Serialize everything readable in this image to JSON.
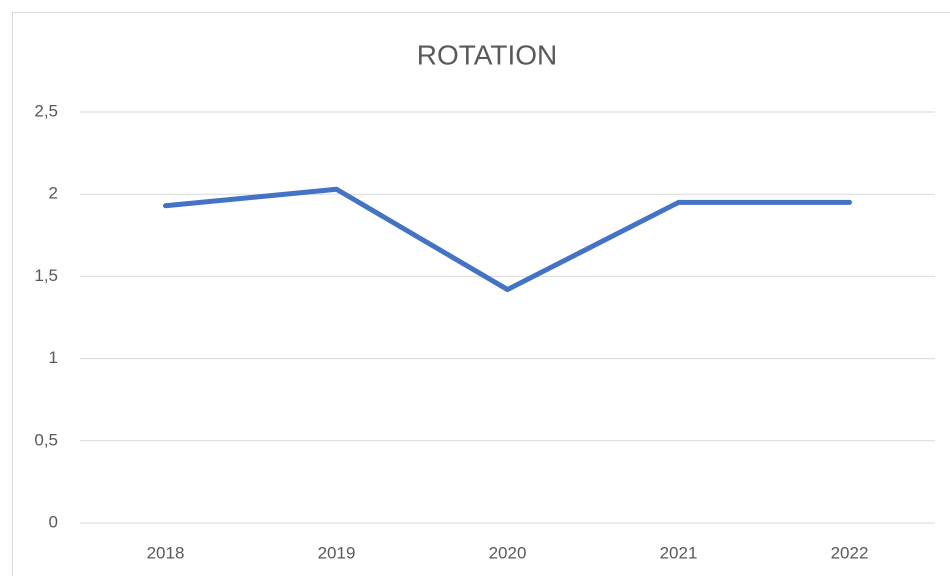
{
  "chart_data": {
    "type": "line",
    "title": "ROTATION",
    "categories": [
      "2018",
      "2019",
      "2020",
      "2021",
      "2022"
    ],
    "series": [
      {
        "name": "ROTATION",
        "color": "#4472c4",
        "values": [
          1.93,
          2.03,
          1.42,
          1.95,
          1.95
        ]
      }
    ],
    "ylim": [
      0,
      2.5
    ],
    "yticks": [
      0,
      {
        "value": 0.5,
        "label": "0,5"
      },
      1,
      {
        "value": 1.5,
        "label": "1,5"
      },
      2,
      {
        "value": 2.5,
        "label": "2,5"
      }
    ],
    "grid": true
  }
}
